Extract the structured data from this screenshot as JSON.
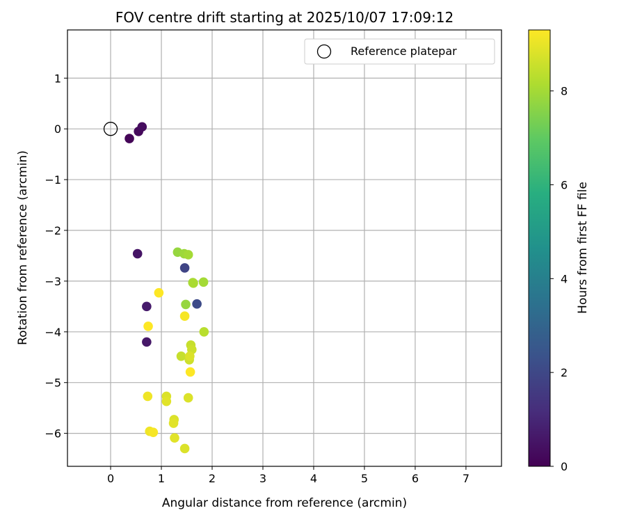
{
  "chart_data": {
    "type": "scatter",
    "title": "FOV centre drift starting at 2025/10/07 17:09:12",
    "xlabel": "Angular distance from reference (arcmin)",
    "ylabel": "Rotation from reference (arcmin)",
    "xlim": [
      -0.85,
      7.7
    ],
    "ylim": [
      -6.65,
      1.95
    ],
    "xticks": [
      0,
      1,
      2,
      3,
      4,
      5,
      6,
      7
    ],
    "yticks": [
      1,
      0,
      -1,
      -2,
      -3,
      -4,
      -5,
      -6
    ],
    "grid": true,
    "legend": {
      "position": "top-right",
      "label": "Reference platepar"
    },
    "reference_point": {
      "x": 0,
      "y": 0
    },
    "colorbar": {
      "label": "Hours from first FF file",
      "min": 0,
      "max": 9.3,
      "ticks": [
        0,
        2,
        4,
        6,
        8
      ],
      "colormap": "viridis"
    },
    "points": [
      {
        "x": 0.37,
        "y": -0.19,
        "h": 0.1
      },
      {
        "x": 0.55,
        "y": -0.05,
        "h": 0.2
      },
      {
        "x": 0.62,
        "y": 0.04,
        "h": 0.3
      },
      {
        "x": 0.53,
        "y": -2.46,
        "h": 0.5
      },
      {
        "x": 0.71,
        "y": -3.5,
        "h": 0.7
      },
      {
        "x": 0.71,
        "y": -4.2,
        "h": 0.6
      },
      {
        "x": 1.46,
        "y": -2.74,
        "h": 1.9
      },
      {
        "x": 1.7,
        "y": -3.45,
        "h": 2.1
      },
      {
        "x": 1.32,
        "y": -2.43,
        "h": 7.8
      },
      {
        "x": 1.45,
        "y": -2.46,
        "h": 7.9
      },
      {
        "x": 1.53,
        "y": -2.48,
        "h": 8.0
      },
      {
        "x": 1.62,
        "y": -3.03,
        "h": 8.0
      },
      {
        "x": 1.63,
        "y": -3.04,
        "h": 8.1
      },
      {
        "x": 1.83,
        "y": -3.02,
        "h": 8.0
      },
      {
        "x": 1.48,
        "y": -3.46,
        "h": 7.8
      },
      {
        "x": 1.84,
        "y": -4.0,
        "h": 8.3
      },
      {
        "x": 1.58,
        "y": -4.26,
        "h": 8.5
      },
      {
        "x": 1.6,
        "y": -4.35,
        "h": 8.6
      },
      {
        "x": 1.39,
        "y": -4.48,
        "h": 8.5
      },
      {
        "x": 1.55,
        "y": -4.55,
        "h": 8.6
      },
      {
        "x": 1.56,
        "y": -4.48,
        "h": 8.8
      },
      {
        "x": 1.46,
        "y": -3.69,
        "h": 9.2
      },
      {
        "x": 0.95,
        "y": -3.23,
        "h": 9.3
      },
      {
        "x": 0.74,
        "y": -3.89,
        "h": 9.3
      },
      {
        "x": 1.57,
        "y": -4.79,
        "h": 9.3
      },
      {
        "x": 0.73,
        "y": -5.27,
        "h": 9.1
      },
      {
        "x": 1.1,
        "y": -5.27,
        "h": 8.8
      },
      {
        "x": 1.1,
        "y": -5.37,
        "h": 8.9
      },
      {
        "x": 1.53,
        "y": -5.3,
        "h": 8.8
      },
      {
        "x": 1.25,
        "y": -5.73,
        "h": 8.8
      },
      {
        "x": 1.24,
        "y": -5.8,
        "h": 8.9
      },
      {
        "x": 0.77,
        "y": -5.96,
        "h": 9.1
      },
      {
        "x": 0.84,
        "y": -5.98,
        "h": 9.2
      },
      {
        "x": 1.26,
        "y": -6.09,
        "h": 8.9
      },
      {
        "x": 1.46,
        "y": -6.3,
        "h": 8.8
      }
    ]
  }
}
